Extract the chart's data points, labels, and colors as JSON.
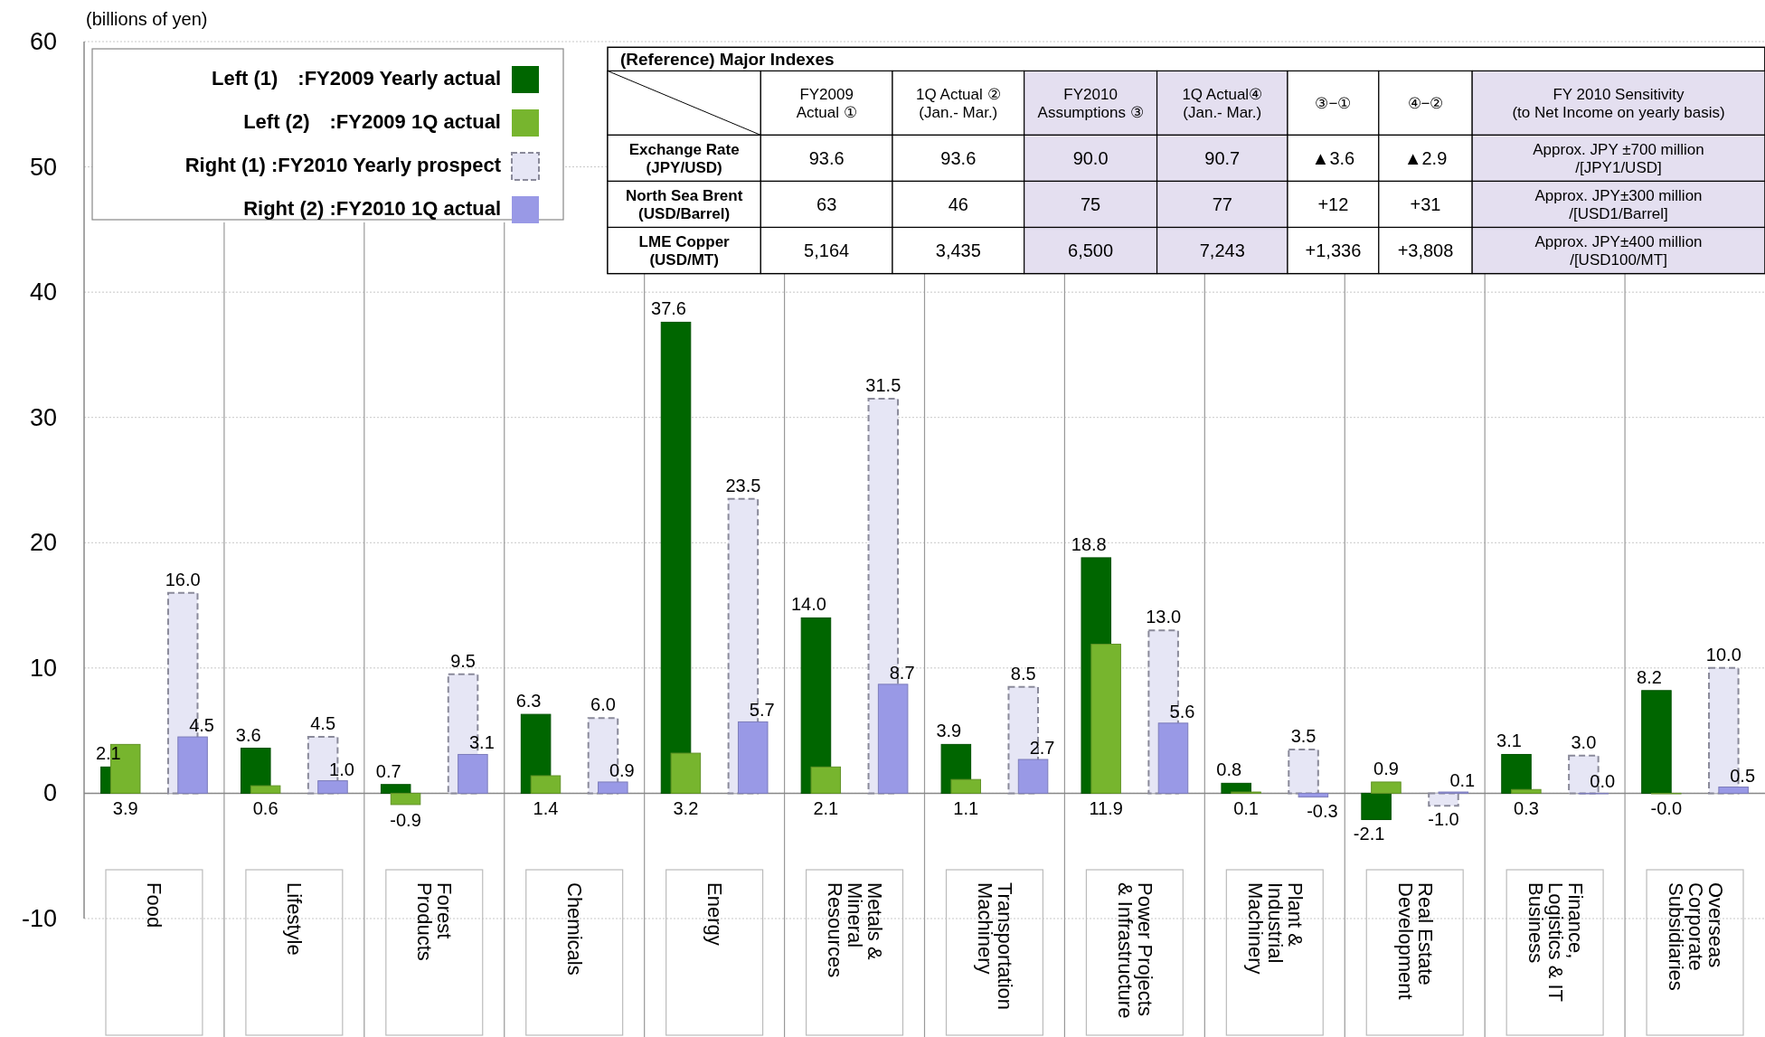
{
  "chart_data": {
    "type": "bar",
    "ylabel": "(billions of yen)",
    "categories": [
      "Food",
      "Lifestyle",
      "Forest Products",
      "Chemicals",
      "Energy",
      "Metals & Mineral Resources",
      "Transportation Machinery",
      "Power Projects & Infrastructure",
      "Plant & Industrial Machinery",
      "Real Estate Development",
      "Finance, Logistics & IT Business",
      "Overseas Corporate Subsidiaries"
    ],
    "series": [
      {
        "name": "Left (1)　:FY2009  Yearly actual",
        "color": "#006600",
        "values": [
          2.1,
          3.6,
          0.7,
          6.3,
          37.6,
          14.0,
          3.9,
          18.8,
          0.8,
          -2.1,
          3.1,
          8.2
        ],
        "value_labels": [
          "2.1",
          "3.6",
          "0.7",
          "6.3",
          "37.6",
          "14.0",
          "3.9",
          "18.8",
          "0.8",
          "-2.1",
          "3.1",
          "8.2"
        ]
      },
      {
        "name": "Left (2)　:FY2009 1Q actual",
        "color": "#77b52e",
        "values": [
          3.9,
          0.6,
          -0.9,
          1.4,
          3.2,
          2.1,
          1.1,
          11.9,
          0.1,
          0.9,
          0.3,
          0.0
        ],
        "value_labels": [
          "3.9",
          "0.6",
          "-0.9",
          "1.4",
          "3.2",
          "2.1",
          "1.1",
          "11.9",
          "0.1",
          "0.9",
          "0.3",
          "-0.0"
        ]
      },
      {
        "name": "Right (1) :FY2010  Yearly prospect",
        "color": "#e6e6f5",
        "line_style": "dashed",
        "values": [
          16.0,
          4.5,
          9.5,
          6.0,
          23.5,
          31.5,
          8.5,
          13.0,
          3.5,
          -1.0,
          3.0,
          10.0
        ],
        "value_labels": [
          "16.0",
          "4.5",
          "9.5",
          "6.0",
          "23.5",
          "31.5",
          "8.5",
          "13.0",
          "3.5",
          "-1.0",
          "3.0",
          "10.0"
        ]
      },
      {
        "name": "Right (2) :FY2010  1Q actual",
        "color": "#9999e6",
        "values": [
          4.5,
          1.0,
          3.1,
          0.9,
          5.7,
          8.7,
          2.7,
          5.6,
          -0.3,
          0.1,
          0.0,
          0.5
        ],
        "value_labels": [
          "4.5",
          "1.0",
          "3.1",
          "0.9",
          "5.7",
          "8.7",
          "2.7",
          "5.6",
          "-0.3",
          "0.1",
          "0.0",
          "0.5"
        ]
      }
    ],
    "ylim": [
      -10,
      60
    ],
    "yticks": [
      -10,
      0,
      10,
      20,
      30,
      40,
      50,
      60
    ],
    "grid": "y",
    "legend": "top left",
    "annotations": [
      "(Reference) Major Indexes",
      "FY2009\nActual ①",
      "1Q Actual ②\n(Jan.- Mar.)",
      "FY2010\nAssumptions ③",
      "1Q Actual④\n(Jan.- Mar.)",
      "③−①",
      "④−②",
      "FY 2010 Sensitivity\n(to Net Income on yearly basis)",
      "Exchange Rate\n(JPY/USD)",
      "93.6",
      "93.6",
      "90.0",
      "90.7",
      "▲3.6",
      "▲2.9",
      "Approx. JPY ±700 million\n/[JPY1/USD]",
      "North Sea Brent\n(USD/Barrel)",
      "63",
      "46",
      "75",
      "77",
      "+12",
      "+31",
      "Approx. JPY±300 million\n/[USD1/Barrel]",
      "LME Copper\n(USD/MT)",
      "5,164",
      "3,435",
      "6,500",
      "7,243",
      "+1,336",
      "+3,808",
      "Approx. JPY±400 million\n/[USD100/MT]"
    ]
  }
}
